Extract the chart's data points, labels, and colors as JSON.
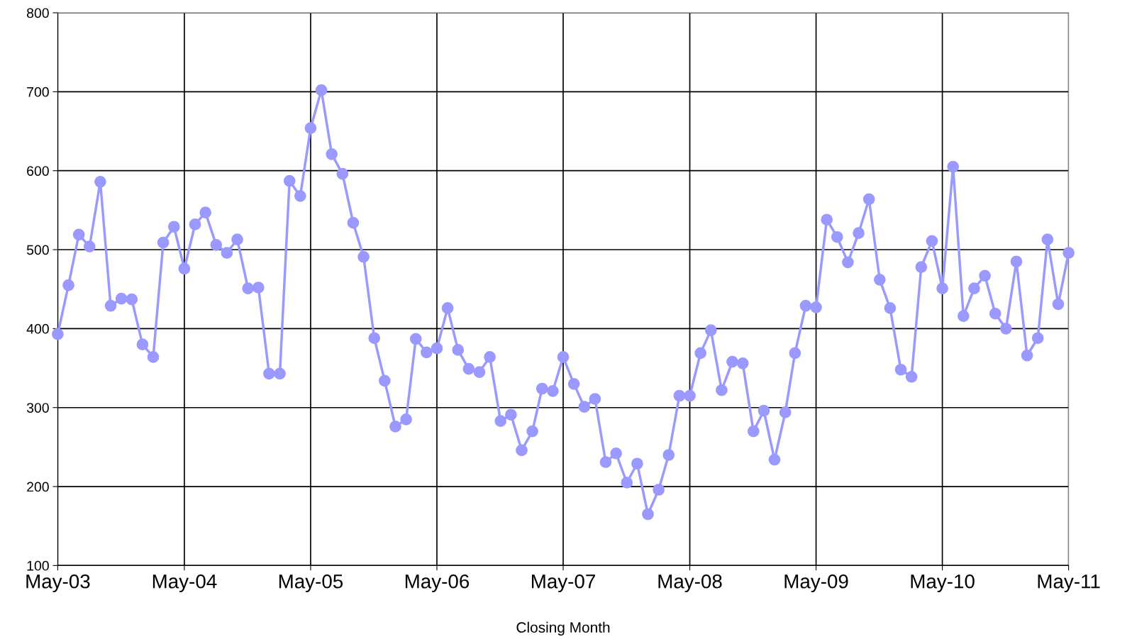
{
  "chart_data": {
    "type": "line",
    "xlabel": "Closing Month",
    "x": [
      "2003-05",
      "2003-06",
      "2003-07",
      "2003-08",
      "2003-09",
      "2003-10",
      "2003-11",
      "2003-12",
      "2004-01",
      "2004-02",
      "2004-03",
      "2004-04",
      "2004-05",
      "2004-06",
      "2004-07",
      "2004-08",
      "2004-09",
      "2004-10",
      "2004-11",
      "2004-12",
      "2005-01",
      "2005-02",
      "2005-03",
      "2005-04",
      "2005-05",
      "2005-06",
      "2005-07",
      "2005-08",
      "2005-09",
      "2005-10",
      "2005-11",
      "2005-12",
      "2006-01",
      "2006-02",
      "2006-03",
      "2006-04",
      "2006-05",
      "2006-06",
      "2006-07",
      "2006-08",
      "2006-09",
      "2006-10",
      "2006-11",
      "2006-12",
      "2007-01",
      "2007-02",
      "2007-03",
      "2007-04",
      "2007-05",
      "2007-06",
      "2007-07",
      "2007-08",
      "2007-09",
      "2007-10",
      "2007-11",
      "2007-12",
      "2008-01",
      "2008-02",
      "2008-03",
      "2008-04",
      "2008-05",
      "2008-06",
      "2008-07",
      "2008-08",
      "2008-09",
      "2008-10",
      "2008-11",
      "2008-12",
      "2009-01",
      "2009-02",
      "2009-03",
      "2009-04",
      "2009-05",
      "2009-06",
      "2009-07",
      "2009-08",
      "2009-09",
      "2009-10",
      "2009-11",
      "2009-12",
      "2010-01",
      "2010-02",
      "2010-03",
      "2010-04",
      "2010-05",
      "2010-06",
      "2010-07",
      "2010-08",
      "2010-09",
      "2010-10",
      "2010-11",
      "2010-12",
      "2011-01",
      "2011-02",
      "2011-03",
      "2011-04",
      "2011-05"
    ],
    "series": [
      {
        "color": "#9999ff",
        "values": [
          393,
          455,
          519,
          504,
          586,
          429,
          438,
          437,
          380,
          364,
          509,
          529,
          476,
          532,
          547,
          506,
          496,
          513,
          451,
          452,
          343,
          343,
          587,
          568,
          654,
          702,
          621,
          596,
          534,
          491,
          388,
          334,
          276,
          285,
          387,
          370,
          375,
          426,
          373,
          349,
          345,
          364,
          283,
          291,
          246,
          270,
          324,
          321,
          364,
          330,
          301,
          311,
          231,
          242,
          205,
          229,
          165,
          196,
          240,
          315,
          315,
          369,
          398,
          322,
          358,
          356,
          270,
          296,
          234,
          294,
          369,
          429,
          427,
          538,
          516,
          484,
          521,
          564,
          462,
          426,
          348,
          339,
          478,
          511,
          451,
          605,
          416,
          451,
          467,
          419,
          400,
          485,
          366,
          388,
          513,
          431,
          496
        ]
      }
    ],
    "xlim": [
      "2003-05",
      "2011-05"
    ],
    "xticks": [
      {
        "value": "2003-05",
        "label": "May-03"
      },
      {
        "value": "2004-05",
        "label": "May-04"
      },
      {
        "value": "2005-05",
        "label": "May-05"
      },
      {
        "value": "2006-05",
        "label": "May-06"
      },
      {
        "value": "2007-05",
        "label": "May-07"
      },
      {
        "value": "2008-05",
        "label": "May-08"
      },
      {
        "value": "2009-05",
        "label": "May-09"
      },
      {
        "value": "2010-05",
        "label": "May-10"
      },
      {
        "value": "2011-05",
        "label": "May-11"
      }
    ],
    "ylim": [
      100,
      800
    ],
    "yticks": [
      100,
      200,
      300,
      400,
      500,
      600,
      700,
      800
    ],
    "grid": true,
    "marker": "circle",
    "line_style": "solid"
  }
}
